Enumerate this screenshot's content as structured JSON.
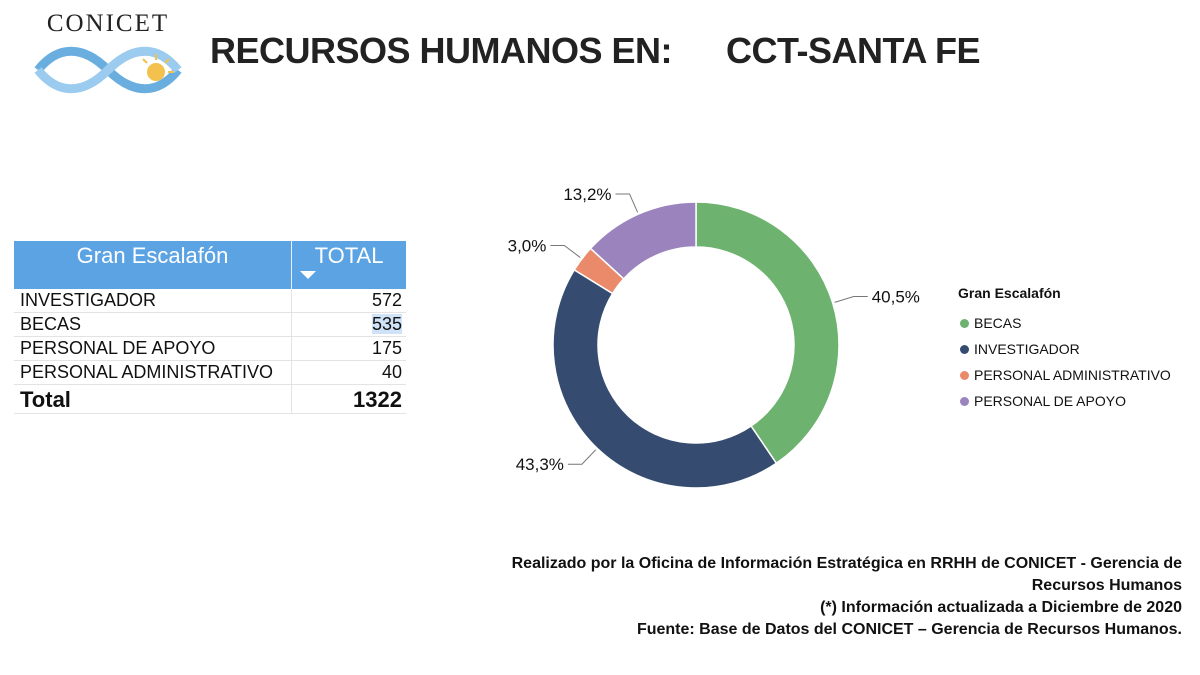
{
  "logo": {
    "text": "CONICET"
  },
  "title": {
    "left": "RECURSOS HUMANOS EN:",
    "right": "CCT-SANTA FE"
  },
  "table": {
    "headers": {
      "name": "Gran Escalafón",
      "total": "TOTAL"
    },
    "rows": [
      {
        "name": "INVESTIGADOR",
        "value": "572"
      },
      {
        "name": "BECAS",
        "value": "535"
      },
      {
        "name": "PERSONAL DE APOYO",
        "value": "175"
      },
      {
        "name": "PERSONAL ADMINISTRATIVO",
        "value": "40"
      }
    ],
    "total": {
      "name": "Total",
      "value": "1322"
    }
  },
  "chart_data": {
    "type": "pie",
    "style": "donut",
    "legend_title": "Gran Escalafón",
    "legend_position": "right",
    "legend_order": [
      "BECAS",
      "INVESTIGADOR",
      "PERSONAL ADMINISTRATIVO",
      "PERSONAL DE APOYO"
    ],
    "slices": [
      {
        "label": "BECAS",
        "value": 40.5,
        "display": "40,5%",
        "color": "#6db26f"
      },
      {
        "label": "INVESTIGADOR",
        "value": 43.3,
        "display": "43,3%",
        "color": "#354c70"
      },
      {
        "label": "PERSONAL ADMINISTRATIVO",
        "value": 3.0,
        "display": "3,0%",
        "color": "#ea8a6a"
      },
      {
        "label": "PERSONAL DE APOYO",
        "value": 13.2,
        "display": "13,2%",
        "color": "#9b84bd"
      }
    ]
  },
  "notes": {
    "line1": "Realizado por la Oficina de Información Estratégica en RRHH de CONICET - Gerencia de",
    "line2": "Recursos Humanos",
    "line3": "(*) Información actualizada a Diciembre de 2020",
    "line4": "Fuente: Base de Datos del CONICET – Gerencia de Recursos Humanos."
  }
}
